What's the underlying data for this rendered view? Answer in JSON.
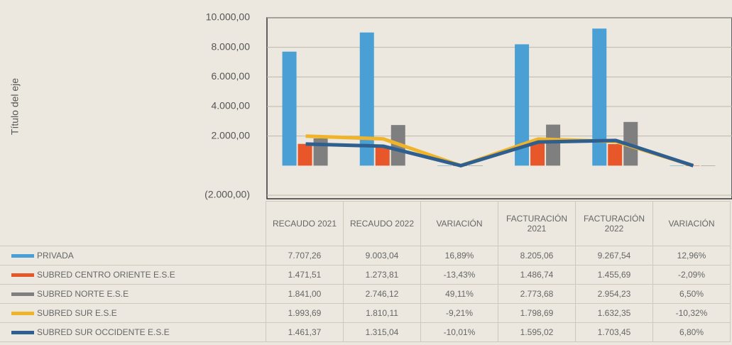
{
  "chart_data": {
    "type": "bar",
    "y_axis_label": "Título del eje",
    "categories": [
      "RECAUDO 2021",
      "RECAUDO 2022",
      "VARIACIÓN",
      "FACTURACIÓN 2021",
      "FACTURACIÓN 2022",
      "VARIACIÓN"
    ],
    "ylim": [
      -2000,
      10000
    ],
    "yticks": [
      {
        "value": -2000,
        "label": "(2.000,00)"
      },
      {
        "value": 2000,
        "label": "2.000,00"
      },
      {
        "value": 4000,
        "label": "4.000,00"
      },
      {
        "value": 6000,
        "label": "6.000,00"
      },
      {
        "value": 8000,
        "label": "8.000,00"
      },
      {
        "value": 10000,
        "label": "10.000,00"
      }
    ],
    "grid": true,
    "series": [
      {
        "name": "PRIVADA",
        "color": "#4a9fd4",
        "kind": "bar",
        "values": [
          7707.26,
          9003.04,
          0.1689,
          8205.06,
          9267.54,
          0.1296
        ],
        "value_labels": [
          "7.707,26",
          "9.003,04",
          "16,89%",
          "8.205,06",
          "9.267,54",
          "12,96%"
        ]
      },
      {
        "name": "SUBRED CENTRO ORIENTE E.S.E",
        "color": "#e8572a",
        "kind": "bar",
        "values": [
          1471.51,
          1273.81,
          -0.1343,
          1486.74,
          1455.69,
          -0.0209
        ],
        "value_labels": [
          "1.471,51",
          "1.273,81",
          "-13,43%",
          "1.486,74",
          "1.455,69",
          "-2,09%"
        ]
      },
      {
        "name": "SUBRED NORTE E.S.E",
        "color": "#7f7f7f",
        "kind": "bar",
        "values": [
          1841.0,
          2746.12,
          0.4911,
          2773.68,
          2954.23,
          0.065
        ],
        "value_labels": [
          "1.841,00",
          "2.746,12",
          "49,11%",
          "2.773,68",
          "2.954,23",
          "6,50%"
        ]
      },
      {
        "name": "SUBRED SUR E.S.E",
        "color": "#f0b42a",
        "kind": "line",
        "values": [
          1993.69,
          1810.11,
          -0.0921,
          1798.69,
          1632.35,
          -0.1032
        ],
        "value_labels": [
          "1.993,69",
          "1.810,11",
          "-9,21%",
          "1.798,69",
          "1.632,35",
          "-10,32%"
        ]
      },
      {
        "name": "SUBRED SUR OCCIDENTE E.S.E",
        "color": "#2f5f8f",
        "kind": "line",
        "values": [
          1461.37,
          1315.04,
          -0.1001,
          1595.02,
          1703.45,
          0.068
        ],
        "value_labels": [
          "1.461,37",
          "1.315,04",
          "-10,01%",
          "1.595,02",
          "1.703,45",
          "6,80%"
        ]
      }
    ]
  }
}
